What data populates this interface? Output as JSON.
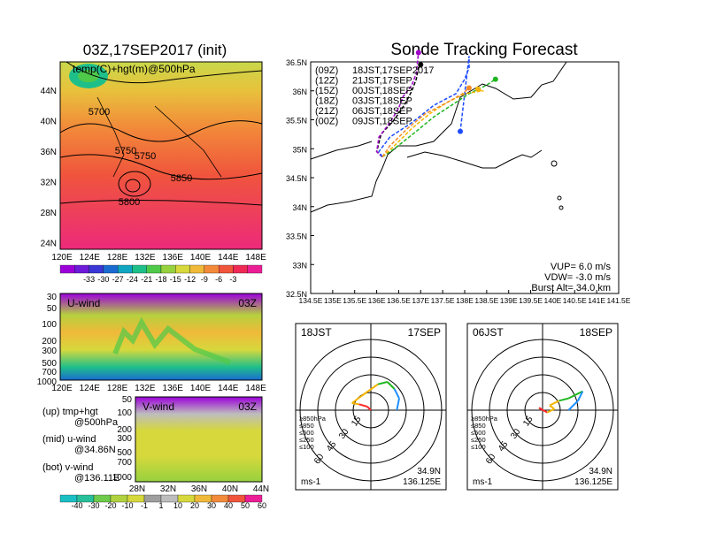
{
  "colors": {
    "temp": [
      "#9b00d9",
      "#6d1bd9",
      "#3a37d6",
      "#1a6bd0",
      "#10a6c2",
      "#1fbf8a",
      "#4fc94a",
      "#96d13e",
      "#d6d83c",
      "#f0b93a",
      "#f28a3a",
      "#f0553c",
      "#ee2a55",
      "#ec1e96"
    ],
    "wind": [
      "#1abfc4",
      "#27c09a",
      "#6fcb4a",
      "#b1d23f",
      "#d6d83c",
      "#9e9e9e",
      "#bdbdbd",
      "#d6d83c",
      "#f0b93a",
      "#f28a3a",
      "#f0553c",
      "#ec1e96"
    ],
    "run09": "#000000",
    "run12": "#a000c8",
    "run15": "#1e4cff",
    "run18": "#1fb51f",
    "run21": "#f4b400",
    "run00": "#f28c28",
    "hodo_low": "#ff2a2a",
    "hodo_mid": "#f4b400",
    "hodo_hi": "#1fb51f",
    "hodo_top": "#1e90ff"
  },
  "map_panel": {
    "title": "03Z,17SEP2017 (init)",
    "label": "temp(C)+hgt(m)@500hPa",
    "contours": [
      "5700",
      "5750",
      "5750",
      "5850",
      "5800"
    ],
    "lat_ticks": [
      "44N",
      "40N",
      "36N",
      "32N",
      "28N",
      "24N"
    ],
    "lon_ticks": [
      "120E",
      "124E",
      "128E",
      "132E",
      "136E",
      "140E",
      "144E",
      "148E"
    ],
    "colorbar_labels": [
      "-33",
      "-30",
      "-27",
      "-24",
      "-21",
      "-18",
      "-15",
      "-12",
      "-9",
      "-6",
      "-3"
    ]
  },
  "uwind_panel": {
    "label": "U-wind",
    "time": "03Z",
    "p_ticks": [
      "30",
      "50",
      "100",
      "200",
      "300",
      "500",
      "700",
      "1000"
    ],
    "lon_ticks": [
      "120E",
      "124E",
      "128E",
      "132E",
      "136E",
      "140E",
      "144E",
      "148E"
    ]
  },
  "vwind_panel": {
    "label": "V-wind",
    "time": "03Z",
    "p_ticks": [
      "50",
      "100",
      "200",
      "300",
      "500",
      "700",
      "1000"
    ],
    "lat_ticks": [
      "28N",
      "32N",
      "36N",
      "40N",
      "44N"
    ]
  },
  "side_notes": {
    "up": "(up) tmp+hgt",
    "up2": "@500hPa",
    "mid": "(mid) u-wind",
    "mid2": "@34.86N",
    "bot": "(bot) v-wind",
    "bot2": "@136.11E"
  },
  "wind_colorbar_labels": [
    "-40",
    "-30",
    "-20",
    "-10",
    "-1",
    "1",
    "10",
    "20",
    "30",
    "40",
    "50",
    "60"
  ],
  "tracking": {
    "title": "Sonde Tracking Forecast",
    "legend": [
      {
        "run": "(09Z)",
        "launch": "18JST,17SEP2017",
        "color_key": "run09"
      },
      {
        "run": "(12Z)",
        "launch": "21JST,17SEP",
        "color_key": "run12"
      },
      {
        "run": "(15Z)",
        "launch": "00JST,18SEP",
        "color_key": "run15"
      },
      {
        "run": "(18Z)",
        "launch": "03JST,18SEP",
        "color_key": "run18"
      },
      {
        "run": "(21Z)",
        "launch": "06JST,18SEP",
        "color_key": "run21"
      },
      {
        "run": "(00Z)",
        "launch": "09JST,18SEP",
        "color_key": "run00"
      }
    ],
    "lat_ticks": [
      "36.5N",
      "36N",
      "35.5N",
      "35N",
      "34.5N",
      "34N",
      "33.5N",
      "33N",
      "32.5N"
    ],
    "lon_ticks": [
      "134.5E",
      "135E",
      "135.5E",
      "136E",
      "136.5E",
      "137E",
      "137.5E",
      "138E",
      "138.5E",
      "139E",
      "139.5E",
      "140E",
      "140.5E",
      "141E",
      "141.5E"
    ],
    "params": {
      "vup": "VUP=  6.0  m/s",
      "vdw": "VDW=  -3.0  m/s",
      "burst": "Burst Alt=  34.0  km"
    }
  },
  "chart_data": [
    {
      "type": "line",
      "title": "Sonde Tracking Forecast",
      "xlim": [
        134.5,
        141.5
      ],
      "ylim": [
        32.5,
        36.5
      ],
      "series": [
        {
          "name": "(09Z) 18JST,17SEP2017",
          "x": [
            136.13,
            136.0,
            136.1,
            136.4,
            136.65,
            136.8,
            136.9,
            136.95,
            137.0
          ],
          "y": [
            34.86,
            34.95,
            35.25,
            35.5,
            35.78,
            36.0,
            36.2,
            36.4,
            36.45
          ]
        },
        {
          "name": "(12Z) 21JST,17SEP",
          "x": [
            136.13,
            136.0,
            136.05,
            136.3,
            136.5,
            136.6,
            136.8,
            136.9,
            136.95
          ],
          "y": [
            34.86,
            34.95,
            35.2,
            35.45,
            35.7,
            35.9,
            36.1,
            36.3,
            36.66
          ]
        },
        {
          "name": "(15Z) 00JST,18SEP",
          "x": [
            136.13,
            136.05,
            136.3,
            136.8,
            137.3,
            137.8,
            138.0,
            138.1,
            138.1,
            137.9
          ],
          "y": [
            34.86,
            34.95,
            35.2,
            35.45,
            35.75,
            35.95,
            36.2,
            36.4,
            36.6,
            35.3
          ]
        },
        {
          "name": "(18Z) 03JST,18SEP",
          "x": [
            136.13,
            136.4,
            136.9,
            137.3,
            137.7,
            138.1,
            138.5,
            138.7
          ],
          "y": [
            34.86,
            35.0,
            35.3,
            35.55,
            35.75,
            35.95,
            36.1,
            36.2
          ]
        },
        {
          "name": "(21Z) 06JST,18SEP",
          "x": [
            136.13,
            136.4,
            136.8,
            137.2,
            137.6,
            138.0,
            138.4,
            138.3
          ],
          "y": [
            34.86,
            35.05,
            35.35,
            35.6,
            35.8,
            35.95,
            36.0,
            36.03
          ]
        },
        {
          "name": "(00Z) 09JST,18SEP",
          "x": [
            136.13,
            136.3,
            136.7,
            137.1,
            137.6,
            137.95,
            138.1
          ],
          "y": [
            34.86,
            35.05,
            35.35,
            35.6,
            35.8,
            35.95,
            36.05
          ]
        }
      ]
    },
    {
      "type": "line",
      "title": "18JST 17SEP",
      "series": [
        {
          "name": "hodograph",
          "u": [
            0,
            -3,
            -10,
            -16,
            -8,
            6,
            14,
            20,
            24,
            22
          ],
          "v": [
            0,
            3,
            5,
            6,
            12,
            22,
            24,
            18,
            10,
            0
          ]
        }
      ],
      "rings": [
        "15",
        "30",
        "45",
        "60"
      ],
      "location": [
        "34.9N",
        "136.125E"
      ],
      "unit": "ms-1",
      "levels": [
        "≥850hPa",
        "≤850",
        "≤500",
        "≤250",
        "≤100"
      ]
    },
    {
      "type": "line",
      "title": "06JST 18SEP",
      "series": [
        {
          "name": "hodograph",
          "u": [
            0,
            -3,
            4,
            10,
            6,
            14,
            22,
            34,
            30,
            22
          ],
          "v": [
            0,
            2,
            -2,
            1,
            4,
            8,
            10,
            16,
            8,
            0
          ]
        }
      ],
      "rings": [
        "15",
        "30",
        "45",
        "60"
      ],
      "location": [
        "34.9N",
        "136.125E"
      ],
      "unit": "ms-1",
      "levels": [
        "≥850hPa",
        "≤850",
        "≤500",
        "≤250",
        "≤100"
      ]
    }
  ]
}
